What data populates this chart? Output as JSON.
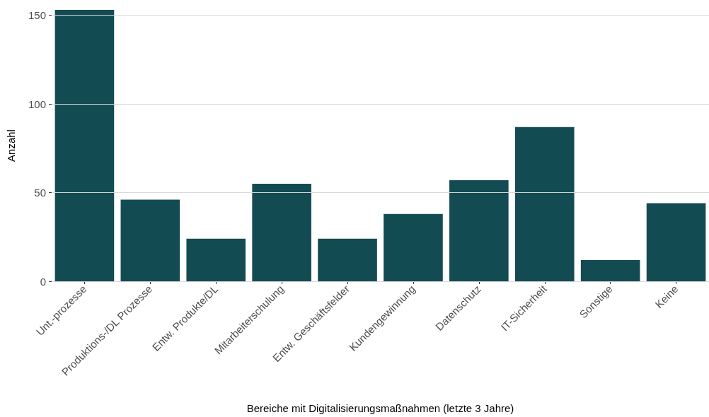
{
  "chart_data": {
    "type": "bar",
    "xlabel": "Bereiche mit Digitalisierungsmaßnahmen (letzte 3 Jahre)",
    "ylabel": "Anzahl",
    "categories": [
      "Unt.-prozesse",
      "Produktions-/DL Prozesse",
      "Entw. Produkte/DL",
      "Mitarbeiterschulung",
      "Entw. Geschäftsfelder",
      "Kundengewinnung",
      "Datenschutz",
      "IT-Sicherheit",
      "Sonstige",
      "Keine"
    ],
    "values": [
      153,
      46,
      24,
      55,
      24,
      38,
      57,
      87,
      12,
      44
    ],
    "color": "#134b53",
    "ylim": [
      0,
      153
    ],
    "yticks": [
      0,
      50,
      100,
      150
    ],
    "grid": "y"
  }
}
